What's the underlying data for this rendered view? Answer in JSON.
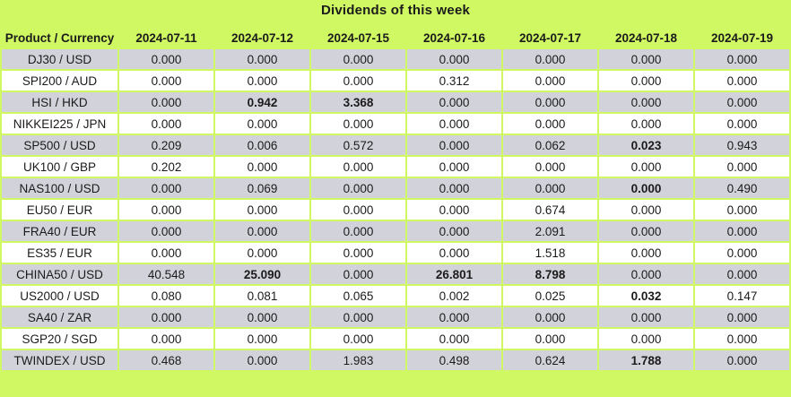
{
  "colors": {
    "table_background_green": "#cff862",
    "alt_row_grey": "#d2d2da",
    "row_white": "#ffffff",
    "text": "#1b1b1b"
  },
  "chart_data": {
    "type": "table",
    "title": "Dividends of this week",
    "corner_header": "Product / Currency",
    "date_headers": [
      "2024-07-11",
      "2024-07-12",
      "2024-07-15",
      "2024-07-16",
      "2024-07-17",
      "2024-07-18",
      "2024-07-19"
    ],
    "rows": [
      {
        "product": "DJ30 / USD",
        "values": [
          "0.000",
          "0.000",
          "0.000",
          "0.000",
          "0.000",
          "0.000",
          "0.000"
        ],
        "bold_cols": []
      },
      {
        "product": "SPI200 / AUD",
        "values": [
          "0.000",
          "0.000",
          "0.000",
          "0.312",
          "0.000",
          "0.000",
          "0.000"
        ],
        "bold_cols": []
      },
      {
        "product": "HSI / HKD",
        "values": [
          "0.000",
          "0.942",
          "3.368",
          "0.000",
          "0.000",
          "0.000",
          "0.000"
        ],
        "bold_cols": [
          1,
          2
        ]
      },
      {
        "product": "NIKKEI225 / JPN",
        "values": [
          "0.000",
          "0.000",
          "0.000",
          "0.000",
          "0.000",
          "0.000",
          "0.000"
        ],
        "bold_cols": []
      },
      {
        "product": "SP500 / USD",
        "values": [
          "0.209",
          "0.006",
          "0.572",
          "0.000",
          "0.062",
          "0.023",
          "0.943"
        ],
        "bold_cols": [
          5
        ]
      },
      {
        "product": "UK100 / GBP",
        "values": [
          "0.202",
          "0.000",
          "0.000",
          "0.000",
          "0.000",
          "0.000",
          "0.000"
        ],
        "bold_cols": []
      },
      {
        "product": "NAS100 / USD",
        "values": [
          "0.000",
          "0.069",
          "0.000",
          "0.000",
          "0.000",
          "0.000",
          "0.490"
        ],
        "bold_cols": [
          5
        ]
      },
      {
        "product": "EU50 / EUR",
        "values": [
          "0.000",
          "0.000",
          "0.000",
          "0.000",
          "0.674",
          "0.000",
          "0.000"
        ],
        "bold_cols": []
      },
      {
        "product": "FRA40 / EUR",
        "values": [
          "0.000",
          "0.000",
          "0.000",
          "0.000",
          "2.091",
          "0.000",
          "0.000"
        ],
        "bold_cols": []
      },
      {
        "product": "ES35 / EUR",
        "values": [
          "0.000",
          "0.000",
          "0.000",
          "0.000",
          "1.518",
          "0.000",
          "0.000"
        ],
        "bold_cols": []
      },
      {
        "product": "CHINA50 / USD",
        "values": [
          "40.548",
          "25.090",
          "0.000",
          "26.801",
          "8.798",
          "0.000",
          "0.000"
        ],
        "bold_cols": [
          1,
          3,
          4
        ]
      },
      {
        "product": "US2000 / USD",
        "values": [
          "0.080",
          "0.081",
          "0.065",
          "0.002",
          "0.025",
          "0.032",
          "0.147"
        ],
        "bold_cols": [
          5
        ]
      },
      {
        "product": "SA40 / ZAR",
        "values": [
          "0.000",
          "0.000",
          "0.000",
          "0.000",
          "0.000",
          "0.000",
          "0.000"
        ],
        "bold_cols": []
      },
      {
        "product": "SGP20 / SGD",
        "values": [
          "0.000",
          "0.000",
          "0.000",
          "0.000",
          "0.000",
          "0.000",
          "0.000"
        ],
        "bold_cols": []
      },
      {
        "product": "TWINDEX / USD",
        "values": [
          "0.468",
          "0.000",
          "1.983",
          "0.498",
          "0.624",
          "1.788",
          "0.000"
        ],
        "bold_cols": [
          5
        ]
      }
    ]
  }
}
